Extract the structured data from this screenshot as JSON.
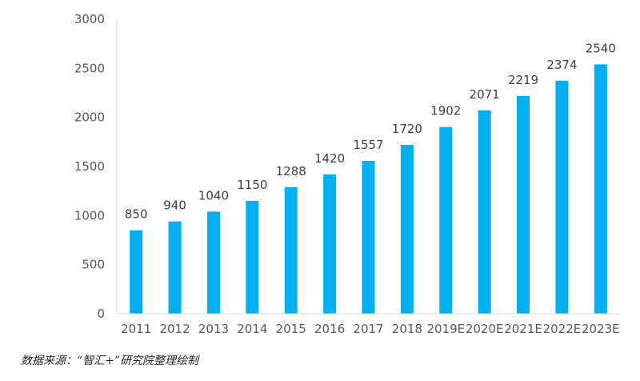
{
  "chart_data": {
    "type": "bar",
    "title": "",
    "xlabel": "",
    "ylabel": "",
    "categories": [
      "2011",
      "2012",
      "2013",
      "2014",
      "2015",
      "2016",
      "2017",
      "2018",
      "2019E",
      "2020E",
      "2021E",
      "2022E",
      "2023E"
    ],
    "values": [
      850,
      940,
      1040,
      1150,
      1288,
      1420,
      1557,
      1720,
      1902,
      2071,
      2219,
      2374,
      2540
    ],
    "ylim": [
      0,
      3000
    ],
    "yticks": [
      0,
      500,
      1000,
      1500,
      2000,
      2500,
      3000
    ],
    "grid": false,
    "legend": "none",
    "data_labels": true,
    "bar_color": "#00B0F0",
    "axis_color": "#D9D9D9"
  },
  "source_note": "数据来源：“智汇+”研究院整理绘制"
}
